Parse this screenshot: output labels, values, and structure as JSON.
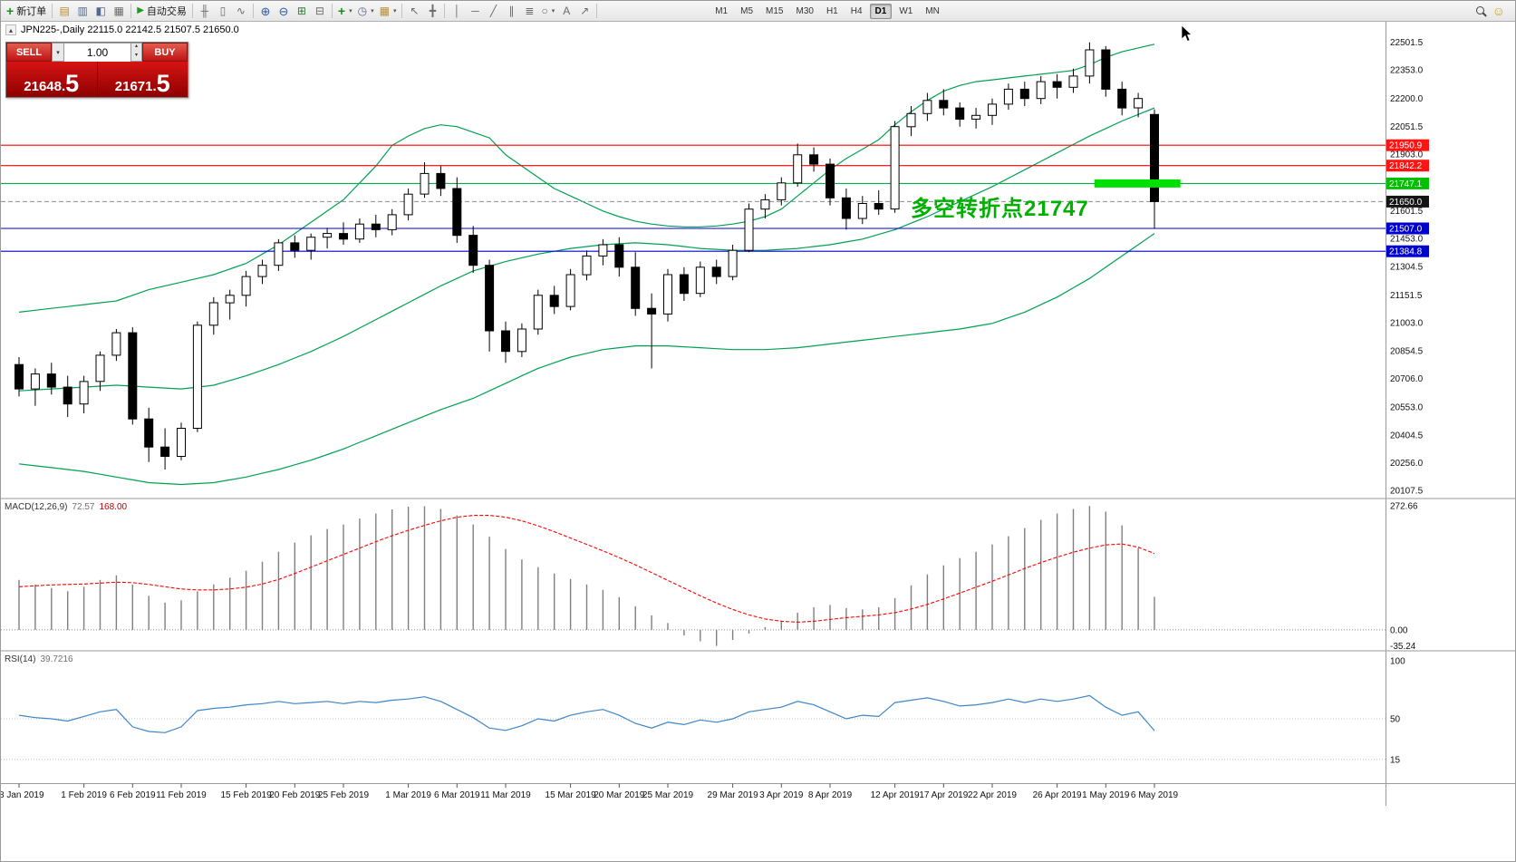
{
  "colors": {
    "toolbar_bg": "#f0f0f0",
    "trade_panel_red": "#c00000",
    "annotation_green": "#00b000",
    "highlight_green": "#00e000",
    "band_green": "#00a050",
    "macd_bar_gray": "#7f7f7f",
    "macd_signal_red": "#ff0000",
    "rsi_blue": "#3d85c8",
    "level_red": "#ff0000",
    "level_blue": "#0000cd"
  },
  "toolbar": {
    "new_order_label": "新订单",
    "autotrading_label": "自动交易",
    "timeframes": [
      "M1",
      "M5",
      "M15",
      "M30",
      "H1",
      "H4",
      "D1",
      "W1",
      "MN"
    ],
    "active_timeframe": "D1"
  },
  "chart": {
    "symbol_info": "JPN225-,Daily 22115.0 22142.5 21507.5 21650.0",
    "trade_panel": {
      "sell_label": "SELL",
      "buy_label": "BUY",
      "volume": "1.00",
      "sell_price_main": "21648.",
      "sell_price_big": "5",
      "buy_price_main": "21671.",
      "buy_price_big": "5"
    }
  },
  "panes": {
    "macd": {
      "name": "MACD(12,26,9)",
      "value_main": "72.57",
      "value_signal": "168.00"
    },
    "rsi": {
      "name": "RSI(14)",
      "value": "39.7216"
    }
  },
  "chart_data": {
    "type": "candlestick",
    "symbol": "JPN225-",
    "period": "Daily",
    "ohlc": {
      "open": 22115.0,
      "high": 22142.5,
      "low": 21507.5,
      "close": 21650.0
    },
    "main_ylim": [
      20070,
      22610
    ],
    "macd_ylim": [
      -44,
      287
    ],
    "rsi_ylim": [
      -5.5,
      107.8
    ],
    "candles": [
      [
        20780,
        20820,
        20610,
        20650
      ],
      [
        20650,
        20760,
        20560,
        20730
      ],
      [
        20730,
        20790,
        20620,
        20660
      ],
      [
        20660,
        20720,
        20500,
        20570
      ],
      [
        20570,
        20720,
        20520,
        20690
      ],
      [
        20690,
        20850,
        20640,
        20830
      ],
      [
        20830,
        20970,
        20800,
        20950
      ],
      [
        20950,
        20980,
        20460,
        20490
      ],
      [
        20490,
        20550,
        20260,
        20340
      ],
      [
        20340,
        20440,
        20220,
        20290
      ],
      [
        20290,
        20470,
        20270,
        20440
      ],
      [
        20440,
        21010,
        20420,
        20990
      ],
      [
        20990,
        21140,
        20940,
        21110
      ],
      [
        21110,
        21180,
        21020,
        21150
      ],
      [
        21150,
        21280,
        21090,
        21250
      ],
      [
        21250,
        21340,
        21210,
        21310
      ],
      [
        21310,
        21450,
        21280,
        21430
      ],
      [
        21430,
        21470,
        21350,
        21390
      ],
      [
        21390,
        21480,
        21340,
        21460
      ],
      [
        21460,
        21510,
        21400,
        21480
      ],
      [
        21480,
        21540,
        21420,
        21450
      ],
      [
        21450,
        21560,
        21430,
        21530
      ],
      [
        21530,
        21580,
        21460,
        21500
      ],
      [
        21500,
        21610,
        21470,
        21580
      ],
      [
        21580,
        21720,
        21550,
        21690
      ],
      [
        21690,
        21860,
        21670,
        21800
      ],
      [
        21800,
        21840,
        21680,
        21720
      ],
      [
        21720,
        21780,
        21430,
        21470
      ],
      [
        21470,
        21520,
        21270,
        21310
      ],
      [
        21310,
        21340,
        20850,
        20960
      ],
      [
        20960,
        21010,
        20790,
        20850
      ],
      [
        20850,
        21000,
        20820,
        20970
      ],
      [
        20970,
        21180,
        20940,
        21150
      ],
      [
        21150,
        21200,
        21050,
        21090
      ],
      [
        21090,
        21290,
        21070,
        21260
      ],
      [
        21260,
        21390,
        21230,
        21360
      ],
      [
        21360,
        21450,
        21310,
        21420
      ],
      [
        21420,
        21460,
        21250,
        21300
      ],
      [
        21300,
        21380,
        21040,
        21080
      ],
      [
        21080,
        21160,
        20760,
        21050
      ],
      [
        21050,
        21290,
        21010,
        21260
      ],
      [
        21260,
        21300,
        21120,
        21160
      ],
      [
        21160,
        21330,
        21140,
        21300
      ],
      [
        21300,
        21340,
        21210,
        21250
      ],
      [
        21250,
        21420,
        21230,
        21390
      ],
      [
        21390,
        21640,
        21380,
        21610
      ],
      [
        21610,
        21690,
        21560,
        21660
      ],
      [
        21660,
        21780,
        21630,
        21750
      ],
      [
        21750,
        21960,
        21730,
        21900
      ],
      [
        21900,
        21940,
        21810,
        21850
      ],
      [
        21850,
        21880,
        21630,
        21670
      ],
      [
        21670,
        21720,
        21500,
        21560
      ],
      [
        21560,
        21680,
        21530,
        21640
      ],
      [
        21640,
        21710,
        21580,
        21610
      ],
      [
        21610,
        22080,
        21590,
        22050
      ],
      [
        22050,
        22160,
        22000,
        22120
      ],
      [
        22120,
        22230,
        22080,
        22190
      ],
      [
        22190,
        22250,
        22110,
        22150
      ],
      [
        22150,
        22180,
        22050,
        22090
      ],
      [
        22090,
        22150,
        22040,
        22110
      ],
      [
        22110,
        22200,
        22060,
        22170
      ],
      [
        22170,
        22280,
        22140,
        22250
      ],
      [
        22250,
        22290,
        22160,
        22200
      ],
      [
        22200,
        22320,
        22170,
        22290
      ],
      [
        22290,
        22330,
        22200,
        22260
      ],
      [
        22260,
        22360,
        22230,
        22320
      ],
      [
        22320,
        22500,
        22280,
        22460
      ],
      [
        22460,
        22480,
        22210,
        22250
      ],
      [
        22250,
        22290,
        22110,
        22150
      ],
      [
        22150,
        22230,
        22100,
        22200
      ],
      [
        22115,
        22142.5,
        21507.5,
        21650
      ]
    ],
    "bollinger": {
      "upper": [
        21060,
        21070,
        21080,
        21090,
        21100,
        21110,
        21120,
        21150,
        21180,
        21200,
        21220,
        21240,
        21260,
        21290,
        21320,
        21370,
        21420,
        21480,
        21540,
        21600,
        21660,
        21750,
        21840,
        21950,
        22000,
        22040,
        22060,
        22050,
        22020,
        21990,
        21900,
        21840,
        21780,
        21720,
        21680,
        21640,
        21600,
        21570,
        21545,
        21530,
        21520,
        21515,
        21515,
        21520,
        21530,
        21545,
        21570,
        21610,
        21680,
        21750,
        21820,
        21880,
        21930,
        21980,
        22060,
        22130,
        22190,
        22240,
        22270,
        22290,
        22300,
        22310,
        22320,
        22330,
        22340,
        22350,
        22380,
        22420,
        22450,
        22470,
        22490
      ],
      "middle": [
        20640,
        20645,
        20650,
        20655,
        20660,
        20665,
        20670,
        20665,
        20660,
        20655,
        20650,
        20660,
        20670,
        20695,
        20720,
        20750,
        20780,
        20815,
        20850,
        20890,
        20930,
        20975,
        21020,
        21065,
        21110,
        21155,
        21200,
        21240,
        21280,
        21305,
        21330,
        21350,
        21370,
        21385,
        21400,
        21410,
        21420,
        21425,
        21430,
        21425,
        21420,
        21410,
        21400,
        21395,
        21390,
        21390,
        21390,
        21395,
        21400,
        21410,
        21420,
        21435,
        21450,
        21475,
        21500,
        21535,
        21570,
        21610,
        21650,
        21690,
        21730,
        21775,
        21820,
        21865,
        21910,
        21955,
        22000,
        22040,
        22080,
        22115,
        22150
      ],
      "lower": [
        20250,
        20240,
        20230,
        20220,
        20210,
        20195,
        20180,
        20165,
        20150,
        20145,
        20140,
        20145,
        20150,
        20165,
        20180,
        20200,
        20220,
        20245,
        20270,
        20300,
        20330,
        20365,
        20400,
        20435,
        20470,
        20505,
        20540,
        20570,
        20600,
        20640,
        20680,
        20720,
        20760,
        20790,
        20820,
        20840,
        20860,
        20870,
        20880,
        20880,
        20880,
        20875,
        20870,
        20865,
        20860,
        20860,
        20860,
        20865,
        20870,
        20880,
        20890,
        20900,
        20910,
        20920,
        20930,
        20940,
        20950,
        20960,
        20970,
        20985,
        21000,
        21030,
        21060,
        21100,
        21140,
        21190,
        21240,
        21300,
        21360,
        21420,
        21480
      ]
    },
    "levels": [
      {
        "value": 21950.9,
        "label": "21950.9",
        "line": "#ff0000",
        "bg": "#ff1414"
      },
      {
        "value": 21842.2,
        "label": "21842.2",
        "line": "#ff0000",
        "bg": "#ff1414"
      },
      {
        "value": 21747.1,
        "label": "21747.1",
        "line": "#00b050",
        "bg": "#00c000"
      },
      {
        "value": 21507.0,
        "label": "21507.0",
        "line": "#0000cd",
        "bg": "#0000cd"
      },
      {
        "value": 21384.8,
        "label": "21384.8",
        "line": "#0000cd",
        "bg": "#0000cd"
      }
    ],
    "bid": {
      "value": 21650.0,
      "label": "21650.0",
      "bg": "#141414"
    },
    "price_axis": [
      22501.5,
      22353.0,
      22200.0,
      22051.5,
      21903.0,
      21601.5,
      21453.0,
      21304.5,
      21151.5,
      21003.0,
      20854.5,
      20706.0,
      20553.0,
      20404.5,
      20256.0,
      20107.5
    ],
    "macd": {
      "hist": [
        110,
        100,
        92,
        85,
        95,
        110,
        120,
        100,
        75,
        60,
        65,
        85,
        100,
        115,
        130,
        150,
        172,
        192,
        208,
        222,
        232,
        245,
        256,
        265,
        271,
        272,
        266,
        252,
        232,
        205,
        178,
        155,
        138,
        124,
        112,
        100,
        88,
        72,
        52,
        32,
        15,
        -12,
        -25,
        -35.24,
        -22,
        -8,
        6,
        20,
        38,
        50,
        55,
        48,
        45,
        50,
        70,
        98,
        122,
        142,
        158,
        172,
        188,
        206,
        224,
        242,
        256,
        266,
        272.66,
        260,
        230,
        180,
        72.57
      ],
      "signal": [
        95,
        97,
        99,
        100,
        101,
        103,
        105,
        104,
        100,
        95,
        90,
        88,
        88,
        90,
        94,
        101,
        111,
        124,
        138,
        152,
        166,
        180,
        194,
        207,
        219,
        230,
        240,
        248,
        252,
        252,
        248,
        240,
        229,
        216,
        202,
        188,
        174,
        159,
        143,
        126,
        109,
        92,
        75,
        59,
        45,
        33,
        24,
        19,
        17,
        19,
        23,
        27,
        30,
        33,
        38,
        46,
        56,
        68,
        81,
        94,
        107,
        121,
        135,
        148,
        160,
        171,
        180,
        187,
        189,
        182,
        168
      ],
      "axis": [
        [
          272.66,
          "272.66"
        ],
        [
          0,
          "0.00"
        ],
        [
          -35.24,
          "-35.24"
        ]
      ]
    },
    "rsi": {
      "values": [
        53,
        51,
        50,
        48,
        52,
        56,
        58,
        43,
        39,
        38,
        43,
        57,
        59,
        60,
        62,
        63,
        65,
        63,
        64,
        65,
        63,
        65,
        64,
        66,
        67,
        69,
        65,
        58,
        51,
        42,
        40,
        44,
        50,
        48,
        53,
        56,
        58,
        53,
        46,
        42,
        47,
        45,
        49,
        47,
        50,
        56,
        58,
        60,
        65,
        62,
        56,
        50,
        53,
        52,
        64,
        66,
        68,
        65,
        61,
        62,
        64,
        67,
        64,
        67,
        65,
        67,
        70,
        60,
        53,
        56,
        39.72
      ],
      "levels": [
        50,
        15
      ],
      "axis": [
        [
          100,
          "100"
        ],
        [
          50,
          "50"
        ],
        [
          15,
          "15"
        ]
      ]
    },
    "x_ticks": [
      [
        0,
        "28 Jan 2019"
      ],
      [
        4,
        "1 Feb 2019"
      ],
      [
        7,
        "6 Feb 2019"
      ],
      [
        10,
        "11 Feb 2019"
      ],
      [
        14,
        "15 Feb 2019"
      ],
      [
        17,
        "20 Feb 2019"
      ],
      [
        20,
        "25 Feb 2019"
      ],
      [
        24,
        "1 Mar 2019"
      ],
      [
        27,
        "6 Mar 2019"
      ],
      [
        30,
        "11 Mar 2019"
      ],
      [
        34,
        "15 Mar 2019"
      ],
      [
        37,
        "20 Mar 2019"
      ],
      [
        40,
        "25 Mar 2019"
      ],
      [
        44,
        "29 Mar 2019"
      ],
      [
        47,
        "3 Apr 2019"
      ],
      [
        50,
        "8 Apr 2019"
      ],
      [
        54,
        "12 Apr 2019"
      ],
      [
        57,
        "17 Apr 2019"
      ],
      [
        60,
        "22 Apr 2019"
      ],
      [
        64,
        "26 Apr 2019"
      ],
      [
        67,
        "1 May 2019"
      ],
      [
        70,
        "6 May 2019"
      ]
    ],
    "highlight_bar": {
      "price": 21747.1,
      "from_bar": 66.3,
      "to_bar": 71.6,
      "thickness": 9,
      "color": "#00e000"
    },
    "annotation": {
      "text": "多空转折点21747",
      "color": "#00b000"
    }
  }
}
